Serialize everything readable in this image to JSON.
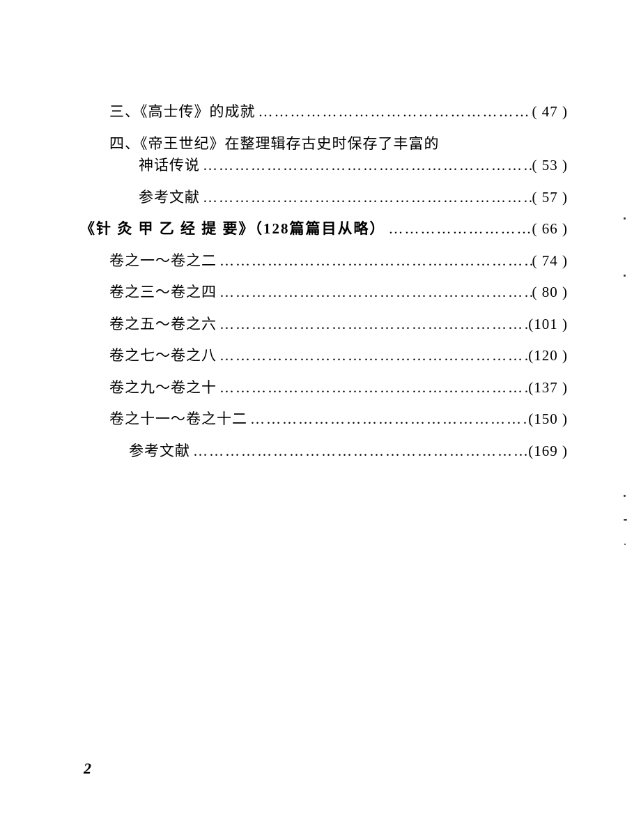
{
  "entries": [
    {
      "label": "三、《高士传》的成就",
      "page": "( 47 )",
      "indent": "indent-1",
      "hasDots": true,
      "bold": false
    },
    {
      "label": "四、《帝王世纪》在整理辑存古史时保存了丰富的",
      "page": "",
      "indent": "indent-1",
      "hasDots": false,
      "bold": false,
      "continuation": true
    },
    {
      "label": "神话传说",
      "page": "( 53 )",
      "indent": "indent-2",
      "hasDots": true,
      "bold": false
    },
    {
      "label": "参考文献",
      "page": "( 57 )",
      "indent": "indent-2",
      "hasDots": true,
      "bold": false
    },
    {
      "label": "《针 灸 甲 乙 经 提 要》（128篇篇目从略）",
      "page": "( 66 )",
      "indent": "indent-3",
      "hasDots": true,
      "bold": true
    },
    {
      "label": "卷之一～卷之二",
      "page": "( 74 )",
      "indent": "indent-4",
      "hasDots": true,
      "bold": false
    },
    {
      "label": "卷之三～卷之四",
      "page": "( 80 )",
      "indent": "indent-4",
      "hasDots": true,
      "bold": false
    },
    {
      "label": "卷之五～卷之六",
      "page": "(101 )",
      "indent": "indent-4",
      "hasDots": true,
      "bold": false
    },
    {
      "label": "卷之七～卷之八",
      "page": "(120 )",
      "indent": "indent-4",
      "hasDots": true,
      "bold": false
    },
    {
      "label": "卷之九～卷之十",
      "page": "(137 )",
      "indent": "indent-4",
      "hasDots": true,
      "bold": false
    },
    {
      "label": "卷之十一～卷之十二",
      "page": "(150 )",
      "indent": "indent-4",
      "hasDots": true,
      "bold": false
    },
    {
      "label": "参考文献",
      "page": "(169 )",
      "indent": "indent-5",
      "hasDots": true,
      "bold": false
    }
  ],
  "dots": "………………………………………………………………………………………………",
  "pageNumber": "2",
  "colors": {
    "background": "#ffffff",
    "text": "#000000"
  },
  "typography": {
    "body_fontsize": 21,
    "pagenum_fontsize": 22
  }
}
